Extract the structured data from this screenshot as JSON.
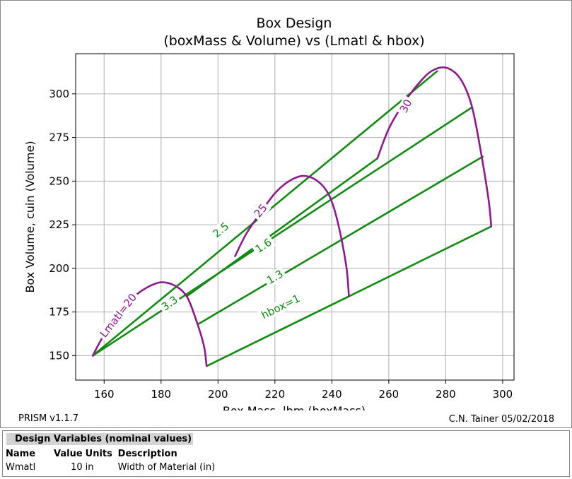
{
  "chart_data": {
    "type": "line",
    "title": "Box Design",
    "subtitle": "(boxMass & Volume) vs (Lmatl & hbox)",
    "xlabel": "Box Mass, lbm (boxMass)",
    "ylabel": "Box Volume, cuin (Volume)",
    "xlim": [
      150,
      304
    ],
    "ylim": [
      136,
      323
    ],
    "xticks": [
      160,
      180,
      200,
      220,
      240,
      260,
      280,
      300
    ],
    "yticks": [
      150,
      175,
      200,
      225,
      250,
      275,
      300
    ],
    "grid": true,
    "colors": {
      "hbox": "#138a13",
      "lmatl": "#8b1a8b"
    },
    "series": [
      {
        "name": "hbox=1",
        "group": "hbox",
        "label": "hbox=1",
        "label_at": [
          222,
          178
        ],
        "x": [
          196,
          246,
          296
        ],
        "y": [
          144,
          184,
          224
        ]
      },
      {
        "name": "1.3",
        "group": "hbox",
        "label": "1.3",
        "label_at": [
          220,
          195
        ],
        "x": [
          193,
          293
        ],
        "y": [
          168,
          264
        ]
      },
      {
        "name": "1.6",
        "group": "hbox",
        "label": "1.6",
        "label_at": [
          216,
          213
        ],
        "x": [
          156,
          289
        ],
        "y": [
          150,
          292
        ]
      },
      {
        "name": "2.5",
        "group": "hbox",
        "label": "2.5",
        "label_at": [
          201,
          222
        ],
        "x": [
          156,
          277
        ],
        "y": [
          150,
          313
        ]
      },
      {
        "name": "3.3",
        "group": "hbox",
        "label": "3.3",
        "label_at": [
          183,
          180
        ],
        "x": [
          189,
          256
        ],
        "y": [
          184,
          263
        ]
      },
      {
        "name": "Lmatl=20",
        "group": "lmatl",
        "label": "Lmatl=20",
        "label_at": [
          165,
          173
        ],
        "x": [
          156,
          160,
          165,
          170,
          175,
          180,
          185,
          189,
          192,
          195,
          196
        ],
        "y": [
          150,
          162,
          173,
          183,
          189,
          192,
          190,
          184,
          172,
          156,
          144
        ]
      },
      {
        "name": "25",
        "group": "lmatl",
        "label": "25",
        "label_at": [
          215,
          233
        ],
        "x": [
          206,
          210,
          215,
          220,
          225,
          230,
          235,
          239,
          242,
          245,
          246
        ],
        "y": [
          207,
          220,
          232,
          243,
          250,
          253,
          250,
          242,
          227,
          202,
          184
        ]
      },
      {
        "name": "30",
        "group": "lmatl",
        "label": "30",
        "label_at": [
          266,
          293
        ],
        "x": [
          256,
          260,
          265,
          270,
          275,
          280,
          285,
          289,
          292,
          295,
          296
        ],
        "y": [
          263,
          280,
          294,
          305,
          313,
          315,
          309,
          294,
          270,
          240,
          224
        ]
      }
    ]
  },
  "footer": {
    "version": "PRISM v1.1.7",
    "author": "C.N. Tainer 05/02/2018"
  },
  "design_variables": {
    "heading": "Design Variables (nominal values)",
    "columns": [
      "Name",
      "Value",
      "Units",
      "Description"
    ],
    "rows": [
      {
        "name": "Wmatl",
        "value": "10",
        "units": "in",
        "description": "Width of Material (in)"
      }
    ]
  }
}
